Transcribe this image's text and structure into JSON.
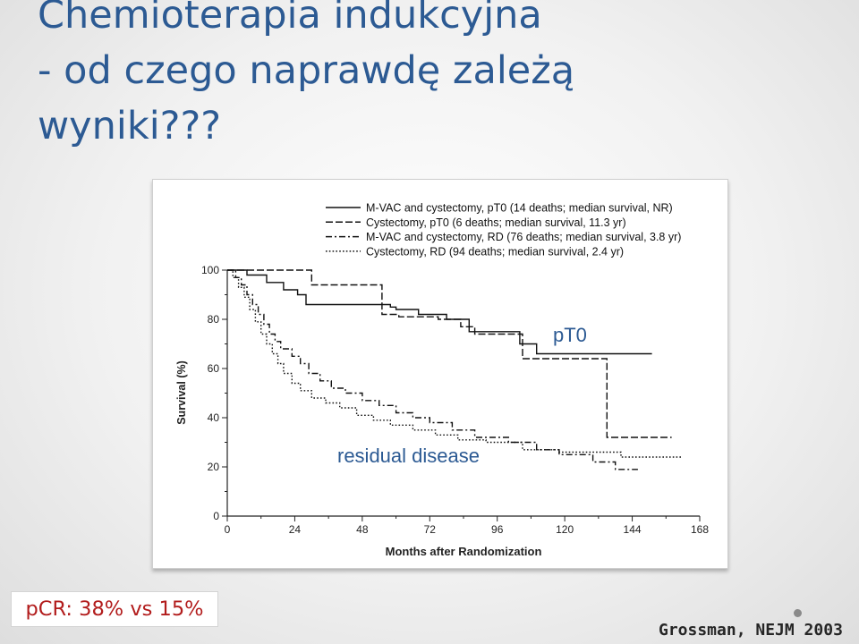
{
  "slide": {
    "title_lines": [
      "Chemioterapia indukcyjna",
      "- od czego naprawdę zależą",
      "wyniki???"
    ],
    "pcr_text": "pCR: 38% vs 15%",
    "citation": "Grossman, NEJM 2003"
  },
  "chart_data": {
    "type": "line",
    "xlabel": "Months after Randomization",
    "ylabel": "Survival (%)",
    "xlim": [
      0,
      168
    ],
    "ylim": [
      0,
      100
    ],
    "xticks": [
      0,
      24,
      48,
      72,
      96,
      120,
      144,
      168
    ],
    "yticks": [
      0,
      20,
      40,
      60,
      80,
      100
    ],
    "grid": false,
    "legend_position": "top-right",
    "annotations": {
      "pt0": "pT0",
      "residual": "residual disease"
    },
    "series": [
      {
        "name": "M-VAC and cystectomy, pT0 (14 deaths; median survival, NR)",
        "style": "solid",
        "points": [
          [
            0,
            100
          ],
          [
            7,
            100
          ],
          [
            7,
            98
          ],
          [
            14,
            98
          ],
          [
            14,
            95
          ],
          [
            20,
            95
          ],
          [
            20,
            92
          ],
          [
            25,
            92
          ],
          [
            25,
            90
          ],
          [
            28,
            90
          ],
          [
            28,
            86
          ],
          [
            58,
            86
          ],
          [
            58,
            85
          ],
          [
            60,
            85
          ],
          [
            60,
            84
          ],
          [
            68,
            84
          ],
          [
            68,
            82
          ],
          [
            78,
            82
          ],
          [
            78,
            80
          ],
          [
            86,
            80
          ],
          [
            86,
            75
          ],
          [
            104,
            75
          ],
          [
            104,
            70
          ],
          [
            110,
            70
          ],
          [
            110,
            66
          ],
          [
            151,
            66
          ]
        ]
      },
      {
        "name": "Cystectomy, pT0 (6 deaths; median survival, 11.3 yr)",
        "style": "dashed",
        "points": [
          [
            0,
            100
          ],
          [
            30,
            100
          ],
          [
            30,
            94
          ],
          [
            55,
            94
          ],
          [
            55,
            82
          ],
          [
            61,
            82
          ],
          [
            61,
            81
          ],
          [
            75,
            81
          ],
          [
            75,
            80
          ],
          [
            83,
            80
          ],
          [
            83,
            77
          ],
          [
            88,
            77
          ],
          [
            88,
            74
          ],
          [
            105,
            74
          ],
          [
            105,
            64
          ],
          [
            135,
            64
          ],
          [
            135,
            32
          ],
          [
            158,
            32
          ]
        ]
      },
      {
        "name": "M-VAC and cystectomy, RD (76 deaths; median survival, 3.8 yr)",
        "style": "dashdot",
        "points": [
          [
            0,
            100
          ],
          [
            3,
            100
          ],
          [
            3,
            97
          ],
          [
            5,
            97
          ],
          [
            5,
            94
          ],
          [
            7,
            94
          ],
          [
            7,
            90
          ],
          [
            9,
            90
          ],
          [
            9,
            86
          ],
          [
            11,
            86
          ],
          [
            11,
            82
          ],
          [
            13,
            82
          ],
          [
            13,
            78
          ],
          [
            15,
            78
          ],
          [
            15,
            74
          ],
          [
            17,
            74
          ],
          [
            17,
            71
          ],
          [
            19,
            71
          ],
          [
            19,
            68
          ],
          [
            23,
            68
          ],
          [
            23,
            65
          ],
          [
            26,
            65
          ],
          [
            26,
            62
          ],
          [
            29,
            62
          ],
          [
            29,
            58
          ],
          [
            33,
            58
          ],
          [
            33,
            55
          ],
          [
            37,
            55
          ],
          [
            37,
            52
          ],
          [
            42,
            52
          ],
          [
            42,
            50
          ],
          [
            48,
            50
          ],
          [
            48,
            47
          ],
          [
            54,
            47
          ],
          [
            54,
            45
          ],
          [
            60,
            45
          ],
          [
            60,
            42
          ],
          [
            66,
            42
          ],
          [
            66,
            40
          ],
          [
            72,
            40
          ],
          [
            72,
            38
          ],
          [
            80,
            38
          ],
          [
            80,
            35
          ],
          [
            88,
            35
          ],
          [
            88,
            32
          ],
          [
            100,
            32
          ],
          [
            100,
            30
          ],
          [
            110,
            30
          ],
          [
            110,
            27
          ],
          [
            118,
            27
          ],
          [
            118,
            25
          ],
          [
            130,
            25
          ],
          [
            130,
            22
          ],
          [
            138,
            22
          ],
          [
            138,
            19
          ],
          [
            146,
            19
          ]
        ]
      },
      {
        "name": "Cystectomy, RD (94 deaths; median survival, 2.4 yr)",
        "style": "dotted",
        "points": [
          [
            0,
            100
          ],
          [
            2,
            100
          ],
          [
            2,
            97
          ],
          [
            4,
            97
          ],
          [
            4,
            93
          ],
          [
            6,
            93
          ],
          [
            6,
            89
          ],
          [
            8,
            89
          ],
          [
            8,
            84
          ],
          [
            10,
            84
          ],
          [
            10,
            79
          ],
          [
            12,
            79
          ],
          [
            12,
            74
          ],
          [
            14,
            74
          ],
          [
            14,
            70
          ],
          [
            16,
            70
          ],
          [
            16,
            66
          ],
          [
            18,
            66
          ],
          [
            18,
            62
          ],
          [
            20,
            62
          ],
          [
            20,
            58
          ],
          [
            23,
            58
          ],
          [
            23,
            54
          ],
          [
            26,
            54
          ],
          [
            26,
            51
          ],
          [
            30,
            51
          ],
          [
            30,
            48
          ],
          [
            35,
            48
          ],
          [
            35,
            46
          ],
          [
            40,
            46
          ],
          [
            40,
            44
          ],
          [
            46,
            44
          ],
          [
            46,
            41
          ],
          [
            52,
            41
          ],
          [
            52,
            39
          ],
          [
            58,
            39
          ],
          [
            58,
            37
          ],
          [
            66,
            37
          ],
          [
            66,
            35
          ],
          [
            74,
            35
          ],
          [
            74,
            33
          ],
          [
            82,
            33
          ],
          [
            82,
            31
          ],
          [
            92,
            31
          ],
          [
            92,
            30
          ],
          [
            105,
            30
          ],
          [
            105,
            27
          ],
          [
            118,
            27
          ],
          [
            118,
            26
          ],
          [
            140,
            26
          ],
          [
            140,
            24
          ],
          [
            162,
            24
          ]
        ]
      }
    ]
  }
}
